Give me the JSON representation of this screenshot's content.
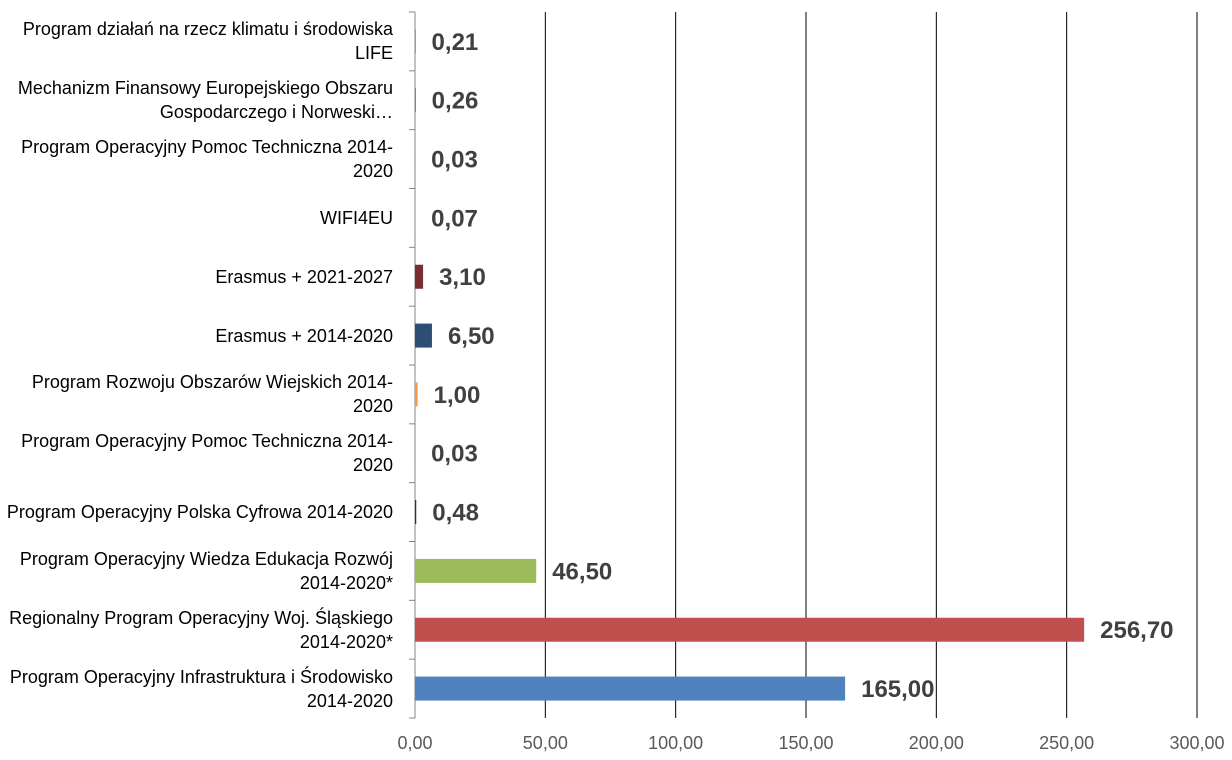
{
  "chart_data": {
    "type": "bar",
    "orientation": "horizontal",
    "categories": [
      "Program działań na rzecz klimatu i środowiska LIFE",
      "Mechanizm Finansowy Europejskiego Obszaru Gospodarczego i Norweski…",
      "Program Operacyjny Pomoc Techniczna 2014-2020",
      "WIFI4EU",
      "Erasmus + 2021-2027",
      "Erasmus + 2014-2020",
      "Program Rozwoju Obszarów Wiejskich 2014-2020",
      "Program Operacyjny Pomoc Techniczna 2014-2020",
      "Program Operacyjny Polska Cyfrowa 2014-2020",
      "Program Operacyjny Wiedza Edukacja Rozwój 2014-2020*",
      "Regionalny Program Operacyjny Woj. Śląskiego  2014-2020*",
      "Program Operacyjny Infrastruktura i Środowisko 2014-2020"
    ],
    "values": [
      0.21,
      0.26,
      0.03,
      0.07,
      3.1,
      6.5,
      1.0,
      0.03,
      0.48,
      46.5,
      256.7,
      165.0
    ],
    "value_labels": [
      "0,21",
      "0,26",
      "0,03",
      "0,07",
      "3,10",
      "6,50",
      "1,00",
      "0,03",
      "0,48",
      "46,50",
      "256,70",
      "165,00"
    ],
    "colors": [
      "#1f5c5c",
      "#1f5c5c",
      "#8064a2",
      "#4bacc6",
      "#7b2c2c",
      "#2c4d75",
      "#f79646",
      "#8064a2",
      "#4b1f4f",
      "#9bbb59",
      "#c0504d",
      "#4f81bd"
    ],
    "xlim": [
      0,
      300
    ],
    "xticks": [
      {
        "value": 0,
        "label": "0,00"
      },
      {
        "value": 50,
        "label": "50,00"
      },
      {
        "value": 100,
        "label": "100,00"
      },
      {
        "value": 150,
        "label": "150,00"
      },
      {
        "value": 200,
        "label": "200,00"
      },
      {
        "value": 250,
        "label": "250,00"
      },
      {
        "value": 300,
        "label": "300,00"
      }
    ],
    "grid": true
  }
}
